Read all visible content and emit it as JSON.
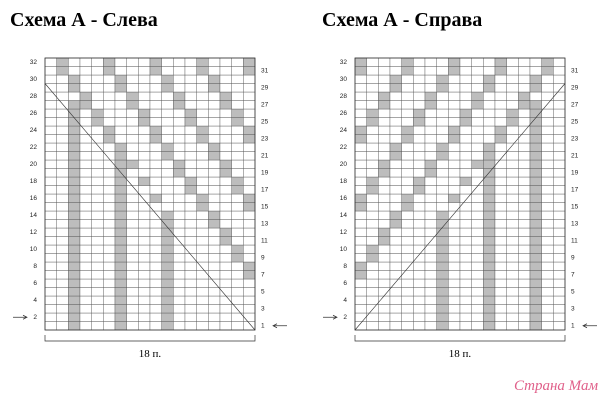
{
  "charts": [
    {
      "title": "Схема А - Слева",
      "left_rows": [
        2,
        4,
        6,
        8,
        10,
        12,
        14,
        16,
        18,
        20,
        22,
        24,
        26,
        28,
        30,
        32
      ],
      "right_rows": [
        1,
        3,
        5,
        7,
        9,
        11,
        13,
        15,
        17,
        19,
        21,
        23,
        25,
        27,
        29,
        31
      ],
      "width_label": "18 п."
    },
    {
      "title": "Схема А - Справа",
      "left_rows": [
        2,
        4,
        6,
        8,
        10,
        12,
        14,
        16,
        18,
        20,
        22,
        24,
        26,
        28,
        30,
        32
      ],
      "right_rows": [
        1,
        3,
        5,
        7,
        9,
        11,
        13,
        15,
        17,
        19,
        21,
        23,
        25,
        27,
        29,
        31
      ],
      "width_label": "18 п."
    }
  ],
  "watermark": "Страна Мам"
}
